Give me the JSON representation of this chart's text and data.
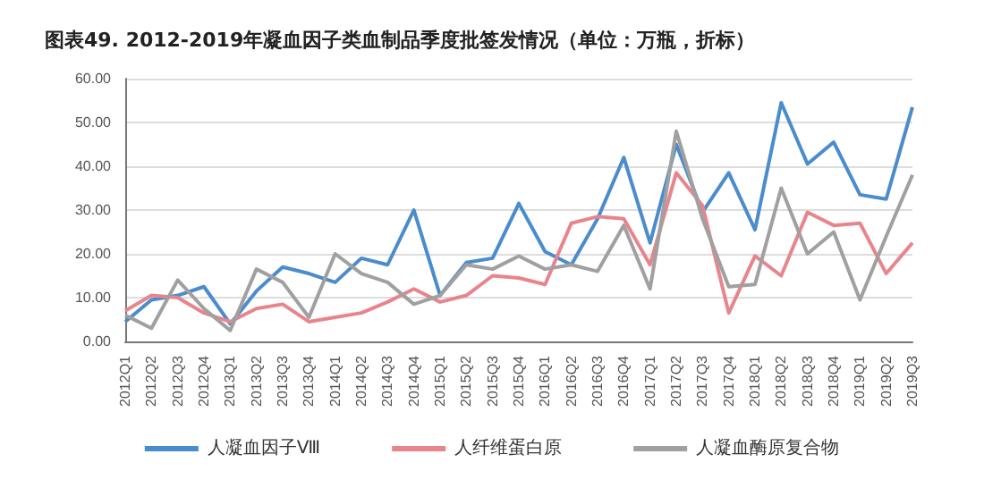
{
  "chart_data": {
    "type": "line",
    "title": "图表49. 2012-2019年凝血因子类血制品季度批签发情况（单位：万瓶，折标）",
    "categories": [
      "2012Q1",
      "2012Q2",
      "2012Q3",
      "2012Q4",
      "2013Q1",
      "2013Q2",
      "2013Q3",
      "2013Q4",
      "2014Q1",
      "2014Q2",
      "2014Q3",
      "2014Q4",
      "2015Q1",
      "2015Q2",
      "2015Q3",
      "2015Q4",
      "2016Q1",
      "2016Q2",
      "2016Q3",
      "2016Q4",
      "2017Q1",
      "2017Q2",
      "2017Q3",
      "2017Q4",
      "2018Q1",
      "2018Q2",
      "2018Q3",
      "2018Q4",
      "2019Q1",
      "2019Q2",
      "2019Q3"
    ],
    "series": [
      {
        "name": "人凝血因子Ⅷ",
        "color": "#4a8ccc",
        "values": [
          4.5,
          9.5,
          10.5,
          12.5,
          4,
          11.5,
          17,
          15.5,
          13.5,
          19,
          17.5,
          30,
          10.5,
          18,
          19,
          31.5,
          20.5,
          17.5,
          28,
          42,
          22.5,
          45,
          29.5,
          38.5,
          25.5,
          54.5,
          40.5,
          45.5,
          33.5,
          32.5,
          53.5
        ]
      },
      {
        "name": "人纤维蛋白原",
        "color": "#e8858c",
        "values": [
          7,
          10.5,
          10,
          6.5,
          4.5,
          7.5,
          8.5,
          4.5,
          5.5,
          6.5,
          9,
          12,
          9,
          10.5,
          15,
          14.5,
          13,
          27,
          28.5,
          28,
          17.5,
          38.5,
          31,
          6.5,
          19.5,
          15,
          29.5,
          26.5,
          27,
          15.5,
          22.5
        ]
      },
      {
        "name": "人凝血酶原复合物",
        "color": "#a0a0a0",
        "values": [
          6,
          3,
          14,
          7.5,
          2.5,
          16.5,
          13.5,
          5.5,
          20,
          15.5,
          13.5,
          8.5,
          10.5,
          17.5,
          16.5,
          19.5,
          16.5,
          17.5,
          16,
          26.5,
          12,
          48,
          28,
          12.5,
          13,
          35,
          20,
          25,
          9.5,
          24,
          38
        ]
      }
    ],
    "ylim": [
      0,
      60
    ],
    "yticks": [
      {
        "value": 0,
        "label": "0.00"
      },
      {
        "value": 10,
        "label": "10.00"
      },
      {
        "value": 20,
        "label": "20.00"
      },
      {
        "value": 30,
        "label": "30.00"
      },
      {
        "value": 40,
        "label": "40.00"
      },
      {
        "value": 50,
        "label": "50.00"
      },
      {
        "value": 60,
        "label": "60.00"
      }
    ],
    "grid": "y",
    "legend": "bottom",
    "marker": "none",
    "line_style": "solid"
  }
}
